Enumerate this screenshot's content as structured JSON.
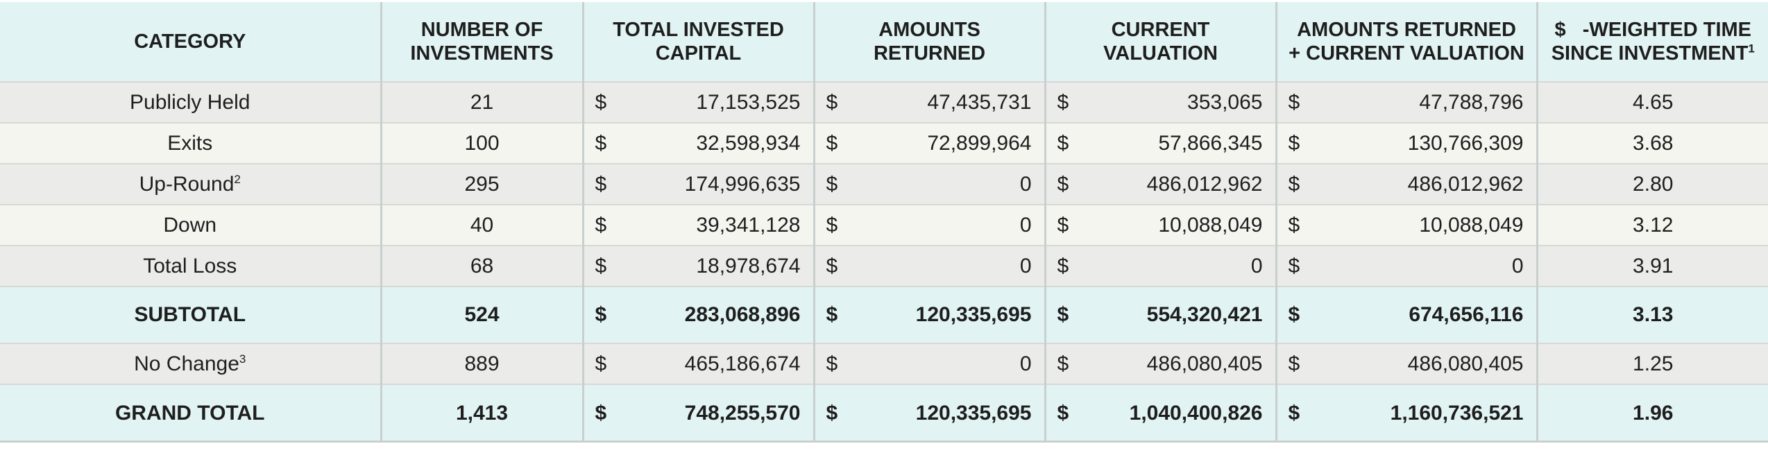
{
  "headers": {
    "category": "CATEGORY",
    "num_investments": [
      "NUMBER OF",
      "INVESTMENTS"
    ],
    "total_invested": [
      "TOTAL INVESTED",
      "CAPITAL"
    ],
    "amounts_returned": [
      "AMOUNTS",
      "RETURNED"
    ],
    "current_valuation": [
      "CURRENT",
      "VALUATION"
    ],
    "returned_plus_valuation": [
      "AMOUNTS RETURNED",
      "+ CURRENT VALUATION"
    ],
    "weighted_time": [
      "$   -WEIGHTED TIME",
      "SINCE INVESTMENT"
    ],
    "weighted_time_footnote": "1"
  },
  "currency_symbol": "$",
  "rows": [
    {
      "category": "Publicly Held",
      "footnote": "",
      "num": "21",
      "invested": "17,153,525",
      "returned": "47,435,731",
      "valuation": "353,065",
      "total": "47,788,796",
      "time": "4.65"
    },
    {
      "category": "Exits",
      "footnote": "",
      "num": "100",
      "invested": "32,598,934",
      "returned": "72,899,964",
      "valuation": "57,866,345",
      "total": "130,766,309",
      "time": "3.68"
    },
    {
      "category": "Up-Round",
      "footnote": "2",
      "num": "295",
      "invested": "174,996,635",
      "returned": "0",
      "valuation": "486,012,962",
      "total": "486,012,962",
      "time": "2.80"
    },
    {
      "category": "Down",
      "footnote": "",
      "num": "40",
      "invested": "39,341,128",
      "returned": "0",
      "valuation": "10,088,049",
      "total": "10,088,049",
      "time": "3.12"
    },
    {
      "category": "Total Loss",
      "footnote": "",
      "num": "68",
      "invested": "18,978,674",
      "returned": "0",
      "valuation": "0",
      "total": "0",
      "time": "3.91"
    }
  ],
  "subtotal": {
    "category": "SUBTOTAL",
    "num": "524",
    "invested": "283,068,896",
    "returned": "120,335,695",
    "valuation": "554,320,421",
    "total": "674,656,116",
    "time": "3.13"
  },
  "no_change": {
    "category": "No Change",
    "footnote": "3",
    "num": "889",
    "invested": "465,186,674",
    "returned": "0",
    "valuation": "486,080,405",
    "total": "486,080,405",
    "time": "1.25"
  },
  "grand_total": {
    "category": "GRAND TOTAL",
    "num": "1,413",
    "invested": "748,255,570",
    "returned": "120,335,695",
    "valuation": "1,040,400,826",
    "total": "1,160,736,521",
    "time": "1.96"
  }
}
